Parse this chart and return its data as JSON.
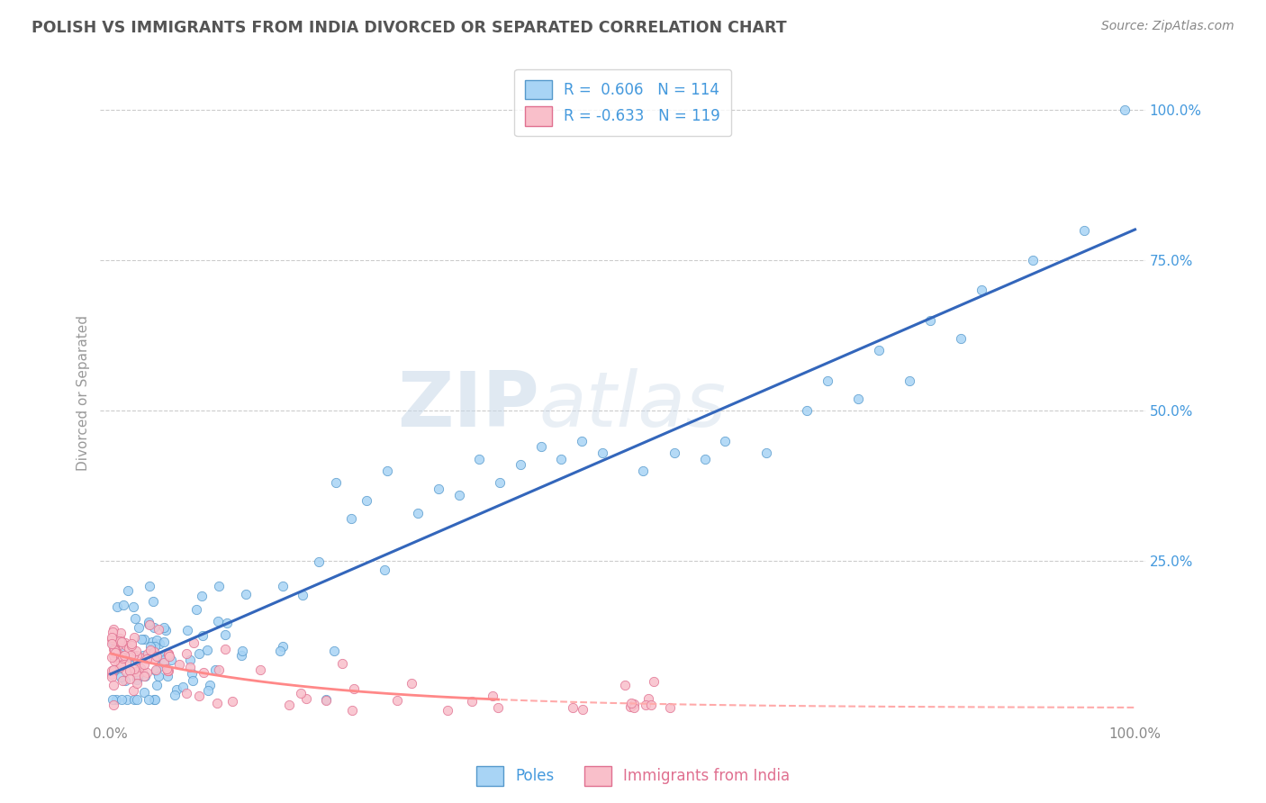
{
  "title": "POLISH VS IMMIGRANTS FROM INDIA DIVORCED OR SEPARATED CORRELATION CHART",
  "source": "Source: ZipAtlas.com",
  "ylabel": "Divorced or Separated",
  "legend_label1": "Poles",
  "legend_label2": "Immigrants from India",
  "R1": 0.606,
  "N1": 114,
  "R2": -0.633,
  "N2": 119,
  "watermark_zip": "ZIP",
  "watermark_atlas": "atlas",
  "blue_face": "#A8D4F5",
  "blue_edge": "#5599CC",
  "pink_face": "#F9BFCA",
  "pink_edge": "#E07090",
  "blue_line": "#3366BB",
  "pink_line_solid": "#FF8888",
  "pink_line_dashed": "#FFAAAA",
  "grid_color": "#CCCCCC",
  "axis_color": "#999999",
  "title_color": "#555555",
  "source_color": "#888888",
  "ytick_color": "#4499DD",
  "xtick_color": "#888888"
}
